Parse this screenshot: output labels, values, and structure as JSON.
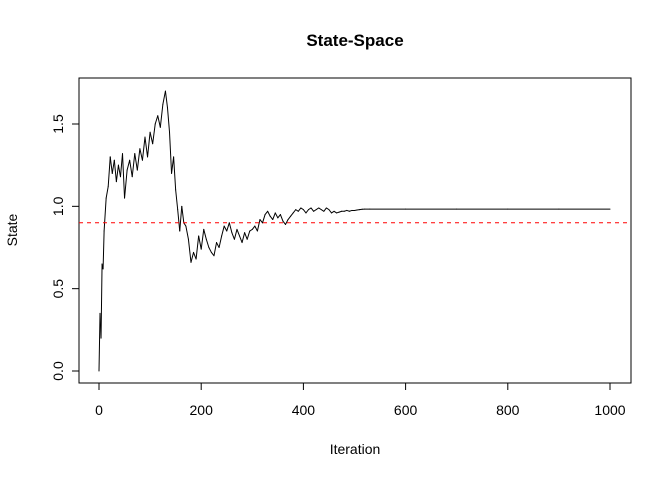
{
  "chart_data": {
    "type": "line",
    "title": "State-Space",
    "xlabel": "Iteration",
    "ylabel": "State",
    "xlim": [
      0,
      1000
    ],
    "ylim": [
      0.0,
      1.7
    ],
    "x_ticks": [
      0,
      200,
      400,
      600,
      800,
      1000
    ],
    "y_ticks": [
      0.0,
      0.5,
      1.0,
      1.5
    ],
    "x_tick_labels": [
      "0",
      "200",
      "400",
      "600",
      "800",
      "1000"
    ],
    "y_tick_labels": [
      "0.0",
      "0.5",
      "1.0",
      "1.5"
    ],
    "grid": false,
    "reference_line": {
      "y": 0.9,
      "color": "#ff0000",
      "style": "dashed"
    },
    "series": [
      {
        "color": "#000000",
        "x": [
          0,
          2,
          4,
          6,
          8,
          10,
          14,
          18,
          22,
          26,
          30,
          34,
          38,
          42,
          46,
          50,
          55,
          60,
          65,
          70,
          75,
          80,
          85,
          90,
          95,
          100,
          105,
          110,
          115,
          120,
          125,
          130,
          134,
          138,
          142,
          146,
          150,
          154,
          158,
          162,
          166,
          170,
          175,
          180,
          185,
          190,
          195,
          200,
          205,
          210,
          215,
          220,
          225,
          230,
          235,
          240,
          245,
          250,
          255,
          260,
          265,
          270,
          275,
          280,
          285,
          290,
          295,
          300,
          305,
          310,
          315,
          320,
          325,
          330,
          335,
          340,
          345,
          350,
          355,
          360,
          365,
          370,
          375,
          380,
          385,
          390,
          395,
          400,
          405,
          410,
          415,
          420,
          425,
          430,
          435,
          440,
          445,
          450,
          455,
          460,
          465,
          470,
          475,
          480,
          485,
          490,
          495,
          500,
          505,
          510,
          515,
          520,
          530,
          600,
          700,
          800,
          900,
          1000
        ],
        "y": [
          0.0,
          0.35,
          0.2,
          0.65,
          0.62,
          0.85,
          1.05,
          1.12,
          1.3,
          1.2,
          1.28,
          1.15,
          1.25,
          1.18,
          1.32,
          1.05,
          1.22,
          1.28,
          1.18,
          1.32,
          1.22,
          1.35,
          1.28,
          1.42,
          1.3,
          1.45,
          1.38,
          1.5,
          1.55,
          1.48,
          1.62,
          1.7,
          1.6,
          1.45,
          1.2,
          1.3,
          1.1,
          0.98,
          0.85,
          1.0,
          0.9,
          0.88,
          0.8,
          0.66,
          0.72,
          0.68,
          0.82,
          0.74,
          0.86,
          0.8,
          0.75,
          0.72,
          0.7,
          0.78,
          0.75,
          0.82,
          0.88,
          0.85,
          0.9,
          0.84,
          0.8,
          0.86,
          0.82,
          0.78,
          0.84,
          0.8,
          0.85,
          0.86,
          0.88,
          0.85,
          0.92,
          0.9,
          0.95,
          0.97,
          0.94,
          0.92,
          0.96,
          0.93,
          0.95,
          0.91,
          0.89,
          0.92,
          0.94,
          0.96,
          0.98,
          0.97,
          0.99,
          0.98,
          0.96,
          0.98,
          0.99,
          0.97,
          0.98,
          0.99,
          0.98,
          0.97,
          0.99,
          0.98,
          0.96,
          0.97,
          0.96,
          0.965,
          0.97,
          0.97,
          0.975,
          0.97,
          0.975,
          0.975,
          0.978,
          0.98,
          0.982,
          0.983,
          0.983,
          0.983,
          0.983,
          0.983,
          0.983,
          0.983
        ]
      }
    ]
  }
}
